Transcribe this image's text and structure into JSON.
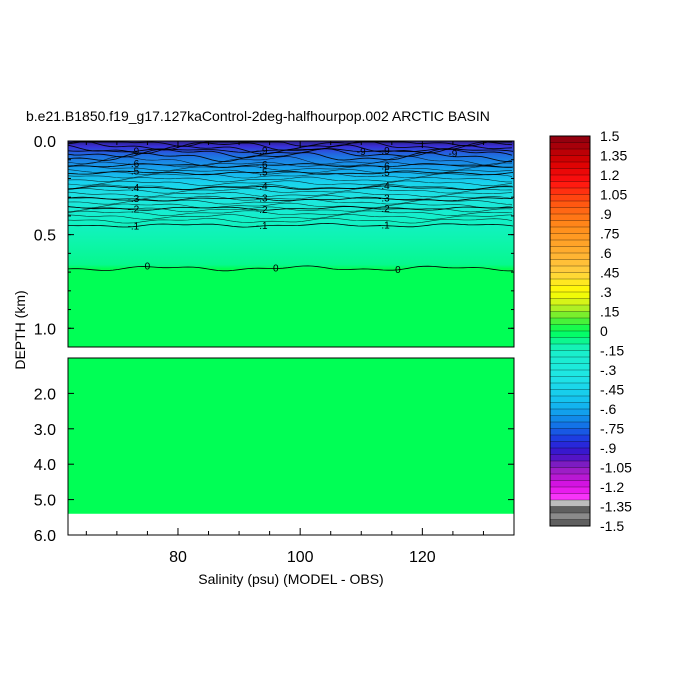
{
  "chart_data": {
    "type": "heatmap",
    "title": "b.e21.B1850.f19_g17.127kaControl-2deg-halfhourpop.002 ARCTIC BASIN",
    "xlabel": "Salinity (psu) (MODEL - OBS)",
    "ylabel": "DEPTH (km)",
    "x_range": [
      62,
      135
    ],
    "x_ticks": [
      "80",
      "100",
      "120"
    ],
    "x_tick_values": [
      80,
      100,
      120
    ],
    "upper_panel": {
      "depth_range": [
        0.0,
        1.1
      ],
      "y_ticks": [
        "0.0",
        "0.5",
        "1.0"
      ],
      "y_tick_values": [
        0.0,
        0.5,
        1.0
      ]
    },
    "lower_panel": {
      "depth_range": [
        1.0,
        6.0
      ],
      "y_ticks": [
        "2.0",
        "3.0",
        "4.0",
        "5.0",
        "6.0"
      ],
      "y_tick_values": [
        2.0,
        3.0,
        4.0,
        5.0,
        6.0
      ],
      "data_bottom_depth": 5.4
    },
    "colorbar": {
      "labels": [
        "1.5",
        "1.35",
        "1.2",
        "1.05",
        ".9",
        ".75",
        ".6",
        ".45",
        ".3",
        ".15",
        "0",
        "-.15",
        "-.3",
        "-.45",
        "-.6",
        "-.75",
        "-.9",
        "-1.05",
        "-1.2",
        "-1.35",
        "-1.5"
      ],
      "levels": [
        1.5,
        1.35,
        1.2,
        1.05,
        0.9,
        0.75,
        0.6,
        0.45,
        0.3,
        0.15,
        0,
        -0.15,
        -0.3,
        -0.45,
        -0.6,
        -0.75,
        -0.9,
        -1.05,
        -1.2,
        -1.35,
        -1.5
      ],
      "step": 0.05
    },
    "contours": [
      {
        "value": -0.9,
        "label": "-.9",
        "depth": 0.05
      },
      {
        "value": -0.6,
        "label": "-.6",
        "depth": 0.13
      },
      {
        "value": -0.5,
        "label": "-.5",
        "depth": 0.17
      },
      {
        "value": -0.4,
        "label": "-.4",
        "depth": 0.25
      },
      {
        "value": -0.3,
        "label": "-.3",
        "depth": 0.31
      },
      {
        "value": -0.2,
        "label": "-.2",
        "depth": 0.36
      },
      {
        "value": -0.1,
        "label": "-.1",
        "depth": 0.45
      },
      {
        "value": 0,
        "label": "0",
        "depth": 0.68
      }
    ],
    "contour_label_x": [
      75,
      96,
      116
    ],
    "top_labels": [
      "-9",
      "-9"
    ],
    "deep_value": 0
  }
}
